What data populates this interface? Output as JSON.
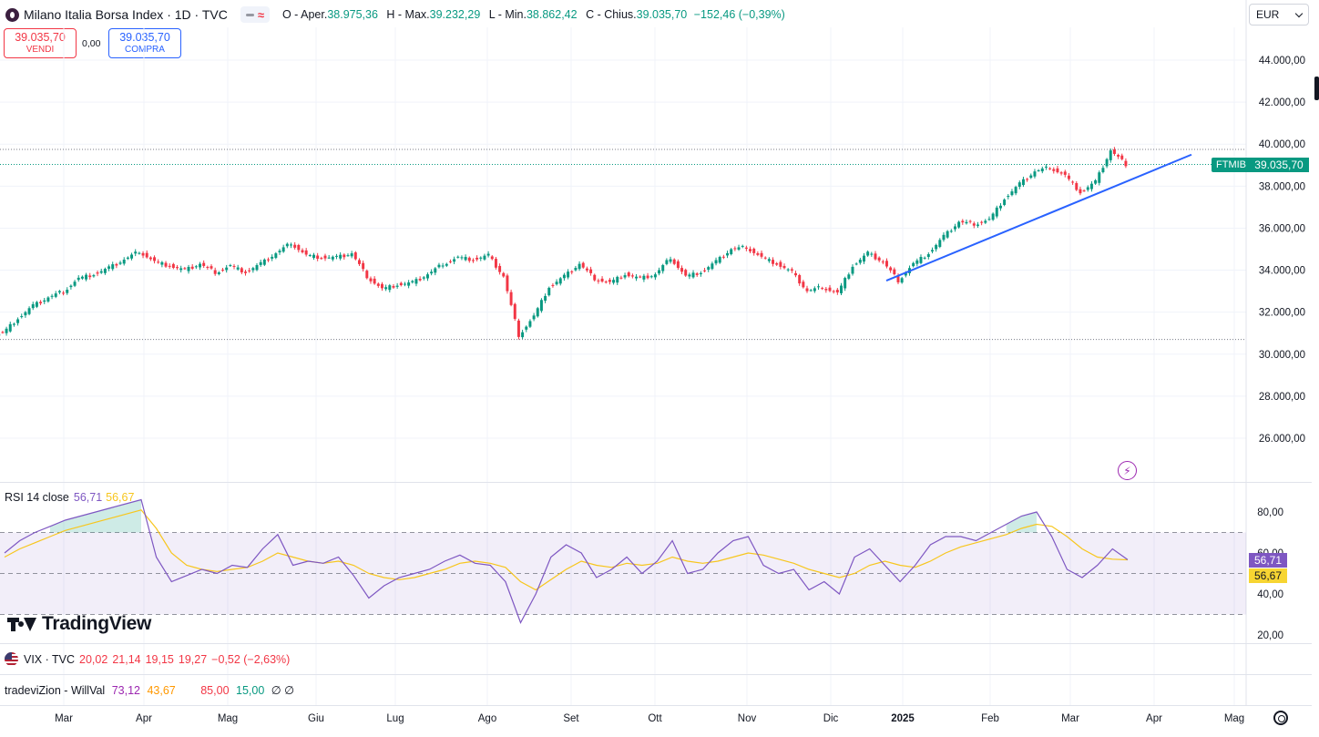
{
  "header": {
    "symbol_title": "Milano Italia Borsa Index · 1D · TVC",
    "ohlc": {
      "open_label": "O - Aper.",
      "open": "38.975,36",
      "high_label": "H - Max.",
      "high": "39.232,29",
      "low_label": "L - Min.",
      "low": "38.862,42",
      "close_label": "C - Chius.",
      "close": "39.035,70",
      "change": "−152,46 (−0,39%)"
    },
    "pill_symbol": "≈"
  },
  "trade": {
    "sell_price": "39.035,70",
    "sell_label": "VENDI",
    "spread": "0,00",
    "buy_price": "39.035,70",
    "buy_label": "COMPRA"
  },
  "currency": "EUR",
  "price_axis_labels": [
    "44.000,00",
    "42.000,00",
    "40.000,00",
    "38.000,00",
    "36.000,00",
    "34.000,00",
    "32.000,00",
    "30.000,00",
    "28.000,00",
    "26.000,00"
  ],
  "last_price_tag": {
    "symbol": "FTMIB",
    "value": "39.035,70"
  },
  "rsi": {
    "label": "RSI 14 close",
    "value": "56,71",
    "ma_value": "56,67",
    "axis_labels": [
      "80,00",
      "60,00",
      "40,00",
      "20,00"
    ]
  },
  "branding": {
    "logo_text": "TradingView"
  },
  "vix_row": {
    "name": "VIX · TVC",
    "values": [
      "20,02",
      "21,14",
      "19,15",
      "19,27",
      "−0,52 (−2,63%)"
    ]
  },
  "willval_row": {
    "name": "tradeviZion - WillVal",
    "v1": "73,12",
    "v2": "43,67",
    "v3": "85,00",
    "v4": "15,00",
    "v5": "∅ ∅"
  },
  "time_axis_labels": [
    "Mar",
    "Apr",
    "Mag",
    "Giu",
    "Lug",
    "Ago",
    "Set",
    "Ott",
    "Nov",
    "Dic",
    "2025",
    "Feb",
    "Mar",
    "Apr",
    "Mag"
  ],
  "colors": {
    "up": "#089981",
    "down": "#f23645",
    "trendline": "#2962ff",
    "rsi": "#7e57c2",
    "rsi_ma": "#f7c61d"
  },
  "chart_data": [
    {
      "type": "candlestick",
      "title": "Milano Italia Borsa Index · 1D · TVC",
      "x_period": "2024-02-26 .. 2025-03-20 (weekly sample of daily bars)",
      "ylim": [
        24500,
        45500
      ],
      "grid": true,
      "close_series": [
        31000,
        31700,
        32300,
        32700,
        33000,
        33600,
        33800,
        34100,
        34500,
        34900,
        34400,
        34200,
        34000,
        34300,
        33900,
        34200,
        33900,
        34300,
        34800,
        35300,
        34700,
        34600,
        34600,
        34800,
        33700,
        33100,
        33300,
        33400,
        33800,
        34300,
        34600,
        34500,
        34700,
        33700,
        30900,
        31800,
        33200,
        33700,
        34300,
        33600,
        33400,
        33800,
        33600,
        33800,
        34600,
        33700,
        33900,
        34400,
        35000,
        35100,
        34600,
        34300,
        33900,
        33000,
        33200,
        32900,
        34200,
        34800,
        34400,
        33500,
        34300,
        34800,
        35600,
        36300,
        36200,
        36400,
        37400,
        38100,
        38700,
        38900,
        38500,
        37700,
        38200,
        39700,
        39036
      ],
      "open_final": 38975.36,
      "high_final": 39232.29,
      "low_final": 38862.42,
      "close_final": 39035.7,
      "trendline": {
        "from": [
          "2024-12-19",
          33500
        ],
        "to": [
          "2025-04-14",
          39500
        ]
      },
      "horizontal_levels": [
        39750,
        30700
      ]
    },
    {
      "type": "line",
      "title": "RSI 14 close",
      "ylim": [
        18,
        85
      ],
      "bands": [
        30,
        50,
        70
      ],
      "series": [
        {
          "name": "RSI",
          "values": [
            60,
            66,
            70,
            73,
            76,
            78,
            80,
            82,
            84,
            86,
            58,
            46,
            49,
            52,
            50,
            54,
            53,
            62,
            69,
            54,
            56,
            55,
            58,
            49,
            38,
            44,
            48,
            50,
            52,
            56,
            59,
            55,
            54,
            46,
            26,
            40,
            58,
            64,
            60,
            48,
            52,
            58,
            50,
            56,
            66,
            50,
            52,
            60,
            66,
            68,
            54,
            50,
            52,
            42,
            46,
            40,
            58,
            62,
            54,
            46,
            54,
            64,
            68,
            68,
            66,
            70,
            74,
            78,
            80,
            68,
            52,
            48,
            54,
            62,
            56.71
          ]
        },
        {
          "name": "MA",
          "values": [
            58,
            62,
            65,
            68,
            71,
            73,
            75,
            77,
            79,
            81,
            72,
            60,
            54,
            52,
            51,
            52,
            53,
            56,
            60,
            58,
            56,
            55,
            56,
            54,
            50,
            48,
            47,
            48,
            50,
            52,
            55,
            56,
            55,
            53,
            46,
            42,
            47,
            52,
            56,
            54,
            53,
            55,
            54,
            55,
            58,
            56,
            55,
            56,
            58,
            60,
            59,
            57,
            55,
            52,
            50,
            48,
            50,
            54,
            56,
            54,
            53,
            56,
            60,
            63,
            65,
            67,
            69,
            72,
            74,
            73,
            68,
            62,
            58,
            57,
            56.67
          ]
        }
      ]
    }
  ]
}
